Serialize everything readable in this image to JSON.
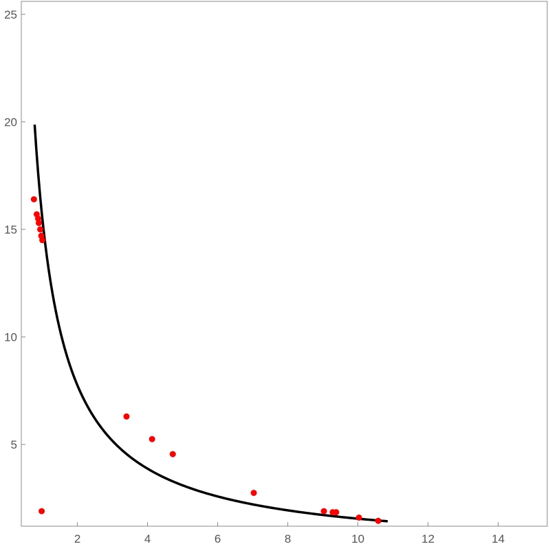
{
  "chart_data": {
    "type": "scatter",
    "title": "",
    "xlabel": "",
    "ylabel": "",
    "xlim": [
      0.4,
      15.4
    ],
    "ylim": [
      1.2,
      25.6
    ],
    "x_ticks": [
      2,
      4,
      6,
      8,
      10,
      12,
      14
    ],
    "y_ticks": [
      5,
      10,
      15,
      20,
      25
    ],
    "grid": false,
    "legend": "none",
    "curve": {
      "formula": "y = 15.5 / x",
      "x_range": [
        0.78,
        10.85
      ],
      "color": "#000000"
    },
    "series": [
      {
        "color": "#ff0000",
        "points": [
          [
            0.76,
            16.4
          ],
          [
            0.84,
            15.7
          ],
          [
            0.88,
            15.5
          ],
          [
            0.9,
            15.3
          ],
          [
            0.94,
            15.0
          ],
          [
            0.97,
            14.7
          ],
          [
            1.0,
            14.5
          ],
          [
            0.98,
            1.9
          ],
          [
            3.4,
            6.3
          ],
          [
            4.13,
            5.25
          ],
          [
            4.72,
            4.55
          ],
          [
            7.03,
            2.75
          ],
          [
            9.03,
            1.9
          ],
          [
            9.28,
            1.85
          ],
          [
            9.38,
            1.85
          ],
          [
            10.03,
            1.6
          ],
          [
            10.58,
            1.45
          ]
        ]
      }
    ]
  }
}
